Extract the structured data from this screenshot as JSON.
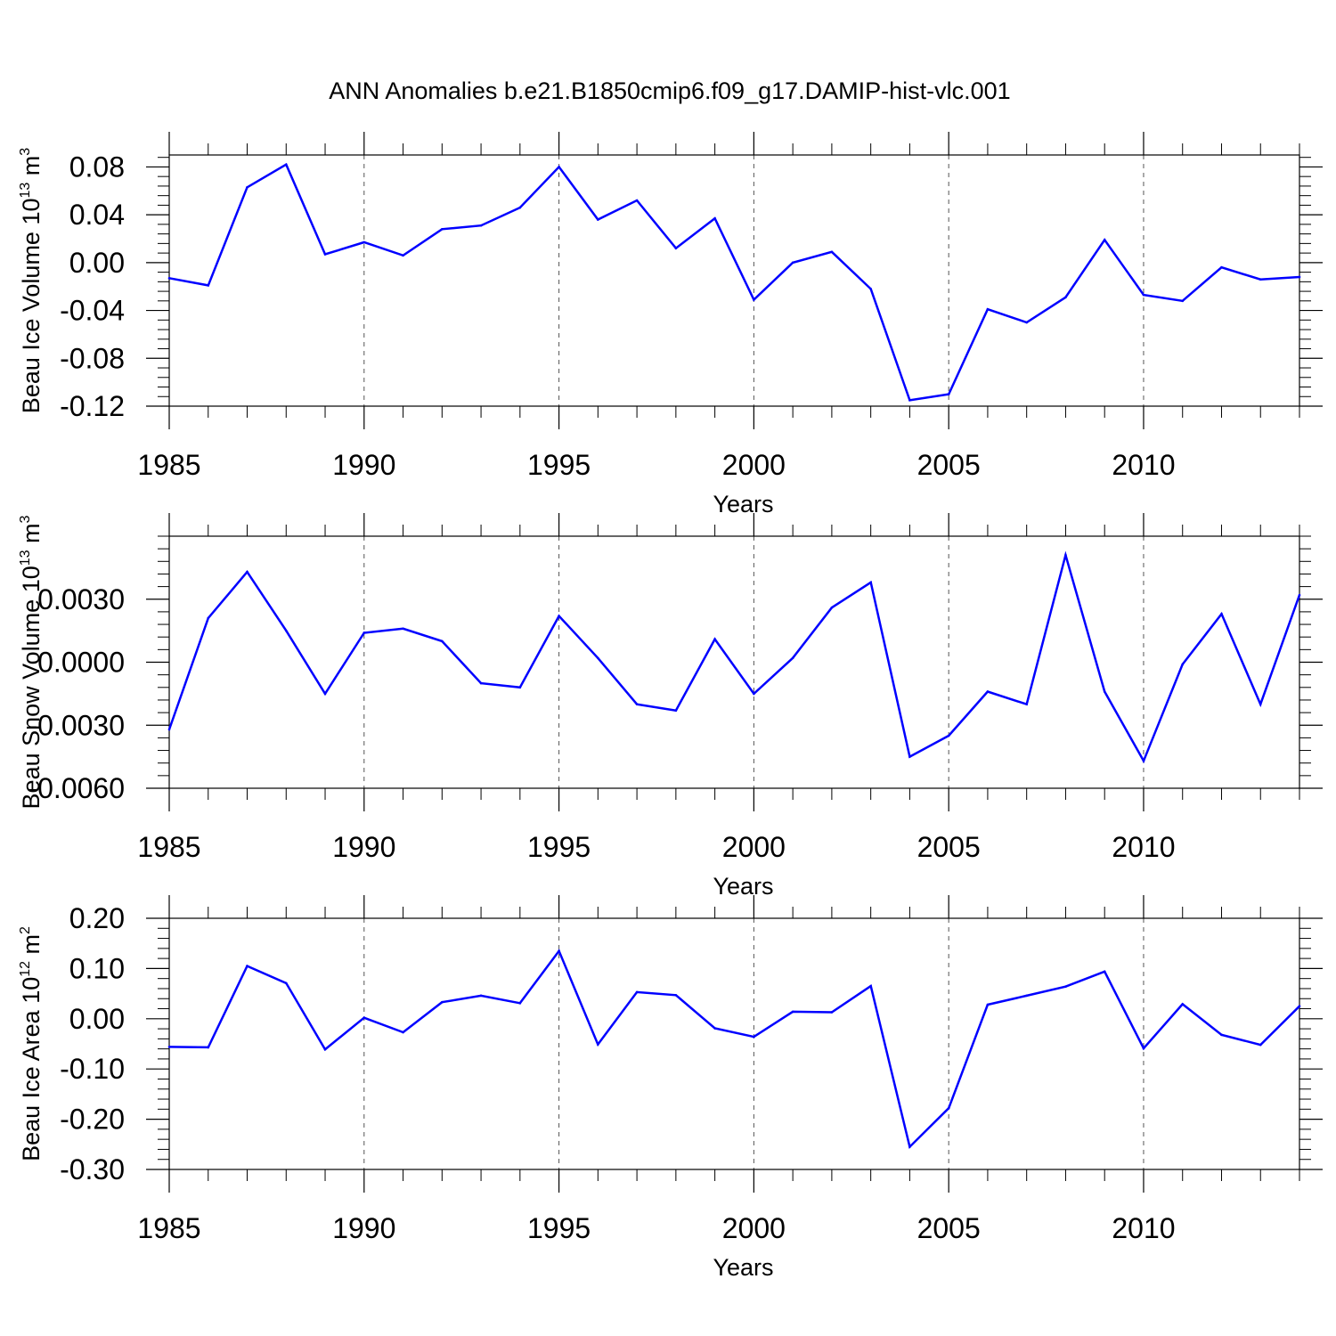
{
  "title": "ANN Anomalies b.e21.B1850cmip6.f09_g17.DAMIP-hist-vlc.001",
  "chart_data": [
    {
      "type": "line",
      "xlabel": "Years",
      "ylabel": "Beau Ice Volume 10",
      "ylabel_exp": "13",
      "ylabel_unit": " m",
      "ylabel_unit_exp": "3",
      "xlim": [
        1985,
        2014
      ],
      "ylim": [
        -0.12,
        0.09
      ],
      "xticks": [
        1985,
        1990,
        1995,
        2000,
        2005,
        2010
      ],
      "xtick_labels": [
        "1985",
        "1990",
        "1995",
        "2000",
        "2005",
        "2010"
      ],
      "yticks": [
        -0.12,
        -0.08,
        -0.04,
        0.0,
        0.04,
        0.08
      ],
      "ytick_labels": [
        "-0.12",
        "-0.08",
        "-0.04",
        "0.00",
        "0.04",
        "0.08"
      ],
      "line_color": "#0000ff",
      "x": [
        1985,
        1986,
        1987,
        1988,
        1989,
        1990,
        1991,
        1992,
        1993,
        1994,
        1995,
        1996,
        1997,
        1998,
        1999,
        2000,
        2001,
        2002,
        2003,
        2004,
        2005,
        2006,
        2007,
        2008,
        2009,
        2010,
        2011,
        2012,
        2013,
        2014
      ],
      "values": [
        -0.013,
        -0.019,
        0.063,
        0.082,
        0.007,
        0.017,
        0.006,
        0.028,
        0.031,
        0.046,
        0.08,
        0.036,
        0.052,
        0.012,
        0.037,
        -0.031,
        0.0,
        0.009,
        -0.022,
        -0.115,
        -0.11,
        -0.039,
        -0.05,
        -0.029,
        0.019,
        -0.027,
        -0.032,
        -0.004,
        -0.014,
        -0.012
      ]
    },
    {
      "type": "line",
      "xlabel": "Years",
      "ylabel": "Beau Snow Volume 10",
      "ylabel_exp": "13",
      "ylabel_unit": " m",
      "ylabel_unit_exp": "3",
      "xlim": [
        1985,
        2014
      ],
      "ylim": [
        -0.006,
        0.006
      ],
      "xticks": [
        1985,
        1990,
        1995,
        2000,
        2005,
        2010
      ],
      "xtick_labels": [
        "1985",
        "1990",
        "1995",
        "2000",
        "2005",
        "2010"
      ],
      "yticks": [
        -0.006,
        -0.003,
        0.0,
        0.003
      ],
      "ytick_labels": [
        "-0.0060",
        "-0.0030",
        "0.0000",
        "0.0030"
      ],
      "line_color": "#0000ff",
      "x": [
        1985,
        1986,
        1987,
        1988,
        1989,
        1990,
        1991,
        1992,
        1993,
        1994,
        1995,
        1996,
        1997,
        1998,
        1999,
        2000,
        2001,
        2002,
        2003,
        2004,
        2005,
        2006,
        2007,
        2008,
        2009,
        2010,
        2011,
        2012,
        2013,
        2014
      ],
      "values": [
        -0.0032,
        0.0021,
        0.0043,
        0.0015,
        -0.0015,
        0.0014,
        0.0016,
        0.001,
        -0.001,
        -0.0012,
        0.0022,
        0.0002,
        -0.002,
        -0.0023,
        0.0011,
        -0.0015,
        0.0002,
        0.0026,
        0.0038,
        -0.0045,
        -0.0035,
        -0.0014,
        -0.002,
        0.0051,
        -0.0014,
        -0.0047,
        -0.0001,
        0.0023,
        -0.002,
        0.0032
      ]
    },
    {
      "type": "line",
      "xlabel": "Years",
      "ylabel": "Beau Ice Area 10",
      "ylabel_exp": "12",
      "ylabel_unit": " m",
      "ylabel_unit_exp": "2",
      "xlim": [
        1985,
        2014
      ],
      "ylim": [
        -0.3,
        0.2
      ],
      "xticks": [
        1985,
        1990,
        1995,
        2000,
        2005,
        2010
      ],
      "xtick_labels": [
        "1985",
        "1990",
        "1995",
        "2000",
        "2005",
        "2010"
      ],
      "yticks": [
        -0.3,
        -0.2,
        -0.1,
        0.0,
        0.1,
        0.2
      ],
      "ytick_labels": [
        "-0.30",
        "-0.20",
        "-0.10",
        "0.00",
        "0.10",
        "0.20"
      ],
      "line_color": "#0000ff",
      "x": [
        1985,
        1986,
        1987,
        1988,
        1989,
        1990,
        1991,
        1992,
        1993,
        1994,
        1995,
        1996,
        1997,
        1998,
        1999,
        2000,
        2001,
        2002,
        2003,
        2004,
        2005,
        2006,
        2007,
        2008,
        2009,
        2010,
        2011,
        2012,
        2013,
        2014
      ],
      "values": [
        -0.056,
        -0.057,
        0.105,
        0.071,
        -0.061,
        0.002,
        -0.027,
        0.033,
        0.046,
        0.031,
        0.135,
        -0.051,
        0.053,
        0.047,
        -0.019,
        -0.036,
        0.014,
        0.013,
        0.065,
        -0.255,
        -0.178,
        0.028,
        0.046,
        0.064,
        0.094,
        -0.059,
        0.029,
        -0.032,
        -0.052,
        0.025
      ]
    }
  ]
}
